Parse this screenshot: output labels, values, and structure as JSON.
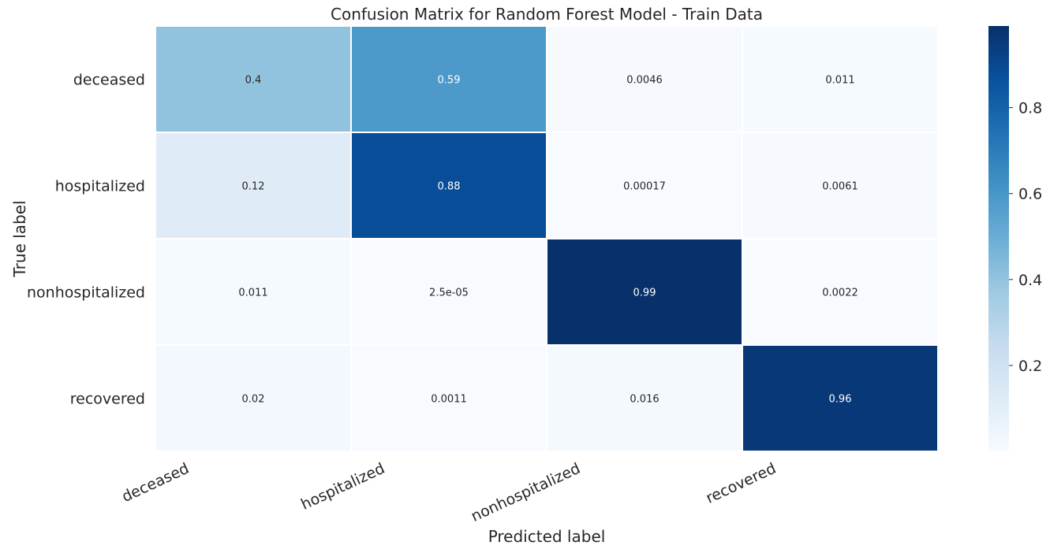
{
  "chart_data": {
    "type": "heatmap",
    "title": "Confusion Matrix for Random Forest Model - Train Data",
    "xlabel": "Predicted label",
    "ylabel": "True label",
    "x_categories": [
      "deceased",
      "hospitalized",
      "nonhospitalized",
      "recovered"
    ],
    "y_categories": [
      "deceased",
      "hospitalized",
      "nonhospitalized",
      "recovered"
    ],
    "values": [
      [
        0.4,
        0.59,
        0.0046,
        0.011
      ],
      [
        0.12,
        0.88,
        0.00017,
        0.0061
      ],
      [
        0.011,
        2.5e-05,
        0.99,
        0.0022
      ],
      [
        0.02,
        0.0011,
        0.016,
        0.96
      ]
    ],
    "annotations": [
      [
        "0.4",
        "0.59",
        "0.0046",
        "0.011"
      ],
      [
        "0.12",
        "0.88",
        "0.00017",
        "0.0061"
      ],
      [
        "0.011",
        "2.5e-05",
        "0.99",
        "0.0022"
      ],
      [
        "0.02",
        "0.0011",
        "0.016",
        "0.96"
      ]
    ],
    "colormap": "Blues",
    "colorbar": {
      "min": 2.5e-05,
      "max": 0.99,
      "ticks": [
        0.2,
        0.4,
        0.6,
        0.8
      ],
      "tick_labels": [
        "0.2",
        "0.4",
        "0.6",
        "0.8"
      ]
    },
    "grid": false,
    "x_tick_rotation_deg": -25
  }
}
